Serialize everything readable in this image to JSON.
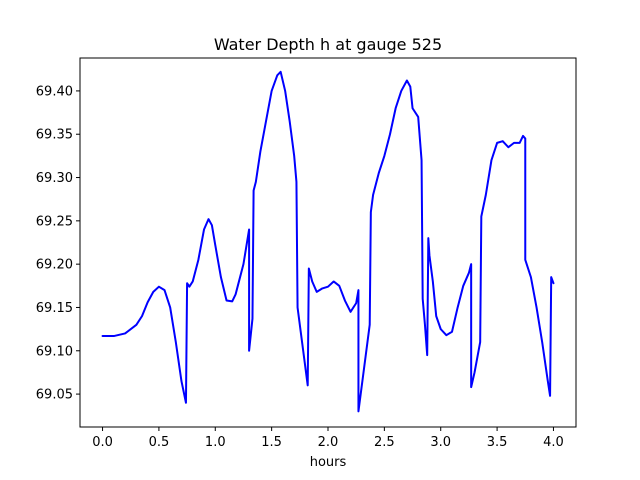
{
  "chart_data": {
    "type": "line",
    "title": "Water Depth h at gauge 525",
    "xlabel": "hours",
    "ylabel": "",
    "xlim": [
      -0.2,
      4.2
    ],
    "ylim": [
      69.012,
      69.438
    ],
    "grid": false,
    "x_ticks": [
      0.0,
      0.5,
      1.0,
      1.5,
      2.0,
      2.5,
      3.0,
      3.5,
      4.0
    ],
    "x_tick_labels": [
      "0.0",
      "0.5",
      "1.0",
      "1.5",
      "2.0",
      "2.5",
      "3.0",
      "3.5",
      "4.0"
    ],
    "y_ticks": [
      69.05,
      69.1,
      69.15,
      69.2,
      69.25,
      69.3,
      69.35,
      69.4
    ],
    "y_tick_labels": [
      "69.05",
      "69.10",
      "69.15",
      "69.20",
      "69.25",
      "69.30",
      "69.35",
      "69.40"
    ],
    "series": [
      {
        "color": "#0000ff",
        "points": [
          [
            0.0,
            69.117
          ],
          [
            0.1,
            69.117
          ],
          [
            0.2,
            69.12
          ],
          [
            0.3,
            69.13
          ],
          [
            0.35,
            69.14
          ],
          [
            0.4,
            69.156
          ],
          [
            0.45,
            69.168
          ],
          [
            0.5,
            69.174
          ],
          [
            0.55,
            69.17
          ],
          [
            0.6,
            69.15
          ],
          [
            0.65,
            69.11
          ],
          [
            0.7,
            69.065
          ],
          [
            0.74,
            69.04
          ],
          [
            0.75,
            69.178
          ],
          [
            0.77,
            69.174
          ],
          [
            0.8,
            69.18
          ],
          [
            0.85,
            69.205
          ],
          [
            0.9,
            69.24
          ],
          [
            0.94,
            69.252
          ],
          [
            0.97,
            69.245
          ],
          [
            1.0,
            69.222
          ],
          [
            1.05,
            69.185
          ],
          [
            1.1,
            69.158
          ],
          [
            1.15,
            69.157
          ],
          [
            1.18,
            69.165
          ],
          [
            1.2,
            69.175
          ],
          [
            1.25,
            69.2
          ],
          [
            1.3,
            69.24
          ],
          [
            1.3,
            69.1
          ],
          [
            1.33,
            69.137
          ],
          [
            1.34,
            69.285
          ],
          [
            1.36,
            69.295
          ],
          [
            1.4,
            69.33
          ],
          [
            1.45,
            69.365
          ],
          [
            1.5,
            69.4
          ],
          [
            1.55,
            69.418
          ],
          [
            1.58,
            69.422
          ],
          [
            1.62,
            69.4
          ],
          [
            1.66,
            69.365
          ],
          [
            1.7,
            69.325
          ],
          [
            1.72,
            69.295
          ],
          [
            1.73,
            69.15
          ],
          [
            1.77,
            69.11
          ],
          [
            1.82,
            69.06
          ],
          [
            1.83,
            69.195
          ],
          [
            1.86,
            69.18
          ],
          [
            1.9,
            69.168
          ],
          [
            1.95,
            69.172
          ],
          [
            2.0,
            69.174
          ],
          [
            2.05,
            69.18
          ],
          [
            2.1,
            69.175
          ],
          [
            2.15,
            69.158
          ],
          [
            2.2,
            69.145
          ],
          [
            2.25,
            69.155
          ],
          [
            2.27,
            69.17
          ],
          [
            2.27,
            69.03
          ],
          [
            2.3,
            69.06
          ],
          [
            2.35,
            69.11
          ],
          [
            2.37,
            69.13
          ],
          [
            2.38,
            69.26
          ],
          [
            2.4,
            69.28
          ],
          [
            2.45,
            69.305
          ],
          [
            2.5,
            69.325
          ],
          [
            2.55,
            69.35
          ],
          [
            2.6,
            69.38
          ],
          [
            2.65,
            69.4
          ],
          [
            2.7,
            69.412
          ],
          [
            2.73,
            69.405
          ],
          [
            2.75,
            69.38
          ],
          [
            2.8,
            69.37
          ],
          [
            2.83,
            69.32
          ],
          [
            2.84,
            69.16
          ],
          [
            2.86,
            69.13
          ],
          [
            2.88,
            69.095
          ],
          [
            2.89,
            69.23
          ],
          [
            2.9,
            69.21
          ],
          [
            2.93,
            69.18
          ],
          [
            2.96,
            69.14
          ],
          [
            3.0,
            69.125
          ],
          [
            3.05,
            69.118
          ],
          [
            3.1,
            69.122
          ],
          [
            3.15,
            69.15
          ],
          [
            3.2,
            69.175
          ],
          [
            3.25,
            69.19
          ],
          [
            3.27,
            69.2
          ],
          [
            3.27,
            69.058
          ],
          [
            3.3,
            69.075
          ],
          [
            3.35,
            69.11
          ],
          [
            3.36,
            69.255
          ],
          [
            3.4,
            69.28
          ],
          [
            3.45,
            69.32
          ],
          [
            3.5,
            69.34
          ],
          [
            3.55,
            69.342
          ],
          [
            3.6,
            69.335
          ],
          [
            3.65,
            69.34
          ],
          [
            3.7,
            69.34
          ],
          [
            3.73,
            69.348
          ],
          [
            3.75,
            69.345
          ],
          [
            3.75,
            69.205
          ],
          [
            3.8,
            69.185
          ],
          [
            3.85,
            69.15
          ],
          [
            3.9,
            69.11
          ],
          [
            3.95,
            69.065
          ],
          [
            3.97,
            69.048
          ],
          [
            3.98,
            69.185
          ],
          [
            4.0,
            69.178
          ]
        ]
      }
    ]
  }
}
